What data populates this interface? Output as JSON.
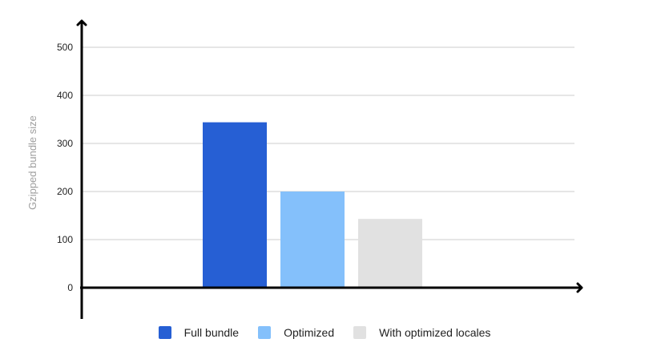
{
  "chart_data": {
    "type": "bar",
    "title": "",
    "xlabel": "",
    "ylabel": "Gzipped bundle size",
    "ylim": [
      0,
      500
    ],
    "yticks": [
      0,
      100,
      200,
      300,
      400,
      500
    ],
    "grid": true,
    "legend_position": "bottom",
    "series": [
      {
        "name": "Full bundle",
        "value": 344,
        "color": "#265fd4"
      },
      {
        "name": "Optimized",
        "value": 200,
        "color": "#84c0fb"
      },
      {
        "name": "With optimized locales",
        "value": 143,
        "color": "#e1e1e1"
      }
    ]
  }
}
